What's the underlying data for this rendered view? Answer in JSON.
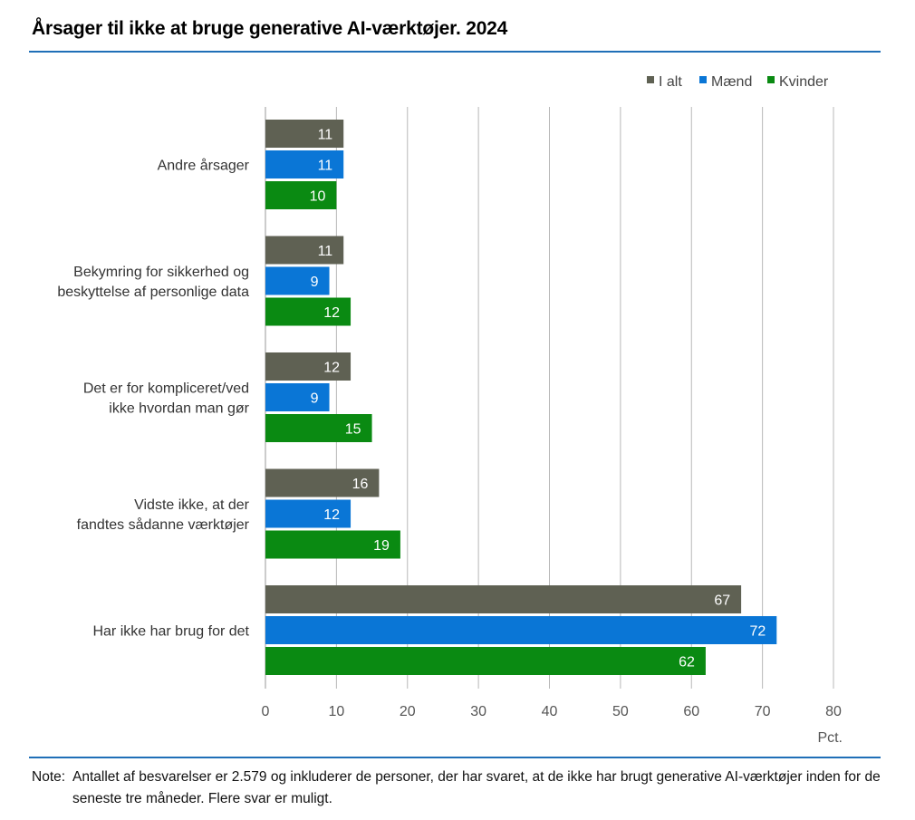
{
  "title": "Årsager til ikke at bruge generative AI-værktøjer. 2024",
  "note": {
    "label": "Note:",
    "text": "Antallet af besvarelser er 2.579 og inkluderer de personer, der har svaret, at de ikke har brugt generative AI-værktøjer inden for de seneste tre måneder. Flere svar er muligt."
  },
  "chart_data": {
    "type": "bar",
    "orientation": "horizontal",
    "title": "Årsager til ikke at bruge generative AI-værktøjer. 2024",
    "xlabel": "Pct.",
    "ylabel": "",
    "xlim": [
      0,
      80
    ],
    "x_ticks": [
      0,
      10,
      20,
      30,
      40,
      50,
      60,
      70,
      80
    ],
    "grid": "vertical",
    "legend_position": "top-right",
    "categories": [
      [
        "Andre årsager"
      ],
      [
        "Bekymring for sikkerhed og",
        "beskyttelse af personlige data"
      ],
      [
        "Det er for kompliceret/ved",
        "ikke hvordan man gør"
      ],
      [
        "Vidste ikke, at der",
        "fandtes sådanne værktøjer"
      ],
      [
        "Har ikke har brug for det"
      ]
    ],
    "series": [
      {
        "name": "I alt",
        "color": "#5f6153",
        "values": [
          11,
          11,
          12,
          16,
          67
        ]
      },
      {
        "name": "Mænd",
        "color": "#0a76d6",
        "values": [
          11,
          9,
          9,
          12,
          72
        ]
      },
      {
        "name": "Kvinder",
        "color": "#0a8a12",
        "values": [
          10,
          12,
          15,
          19,
          62
        ]
      }
    ]
  }
}
